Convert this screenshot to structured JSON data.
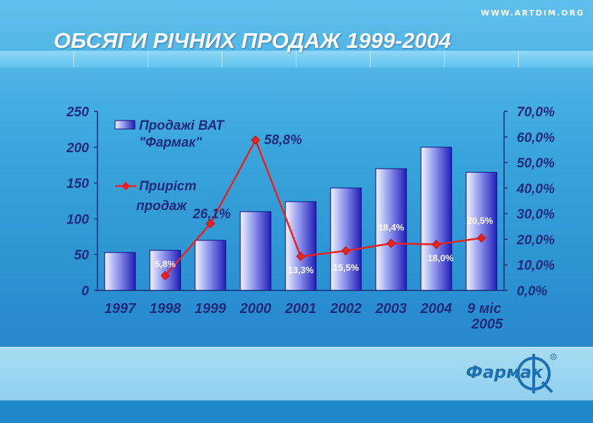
{
  "watermark": "WWW.ARTDIM.ORG",
  "slide_title": "ОБСЯГИ РІЧНИХ ПРОДАЖ 1999-2004",
  "logo_text": "Фармак",
  "colors": {
    "bar_gradient_light": "#f2f4ff",
    "bar_gradient_dark": "#1f1fb8",
    "line_red": "#e8221c",
    "axis_text": "#1d2a7a",
    "background": "#3aa6dc"
  },
  "chart_data": {
    "type": "bar",
    "categories": [
      "1997",
      "1998",
      "1999",
      "2000",
      "2001",
      "2002",
      "2003",
      "2004",
      [
        "9 міс",
        "2005"
      ]
    ],
    "series": [
      {
        "name": "Продажі ВАТ \"Фармак\"",
        "legend_lines": [
          "Продажі ВАТ",
          "\"Фармак\""
        ],
        "type": "bar",
        "axis": "left",
        "values": [
          53,
          56,
          70,
          110,
          124,
          143,
          170,
          200,
          165
        ]
      },
      {
        "name": "Приріст продаж",
        "legend_lines": [
          "Приріст",
          "продаж"
        ],
        "type": "line",
        "axis": "right",
        "values": [
          null,
          5.8,
          26.1,
          58.8,
          13.3,
          15.5,
          18.4,
          18.0,
          20.5
        ],
        "data_labels": [
          null,
          "5,8%",
          "26,1%",
          "58,8%",
          "13,3%",
          "15,5%",
          "18,4%",
          "18,0%",
          "20,5%"
        ]
      }
    ],
    "y_left": {
      "ylim": [
        0,
        250
      ],
      "ticks": [
        0,
        50,
        100,
        150,
        200,
        250
      ],
      "tick_labels": [
        "0",
        "50",
        "100",
        "150",
        "200",
        "250"
      ]
    },
    "y_right": {
      "ylim": [
        0,
        70
      ],
      "ticks": [
        0,
        10,
        20,
        30,
        40,
        50,
        60,
        70
      ],
      "tick_labels": [
        "0,0%",
        "10,0%",
        "20,0%",
        "30,0%",
        "40,0%",
        "50,0%",
        "60,0%",
        "70,0%"
      ]
    },
    "grid": false,
    "legend_position": "top-left"
  }
}
